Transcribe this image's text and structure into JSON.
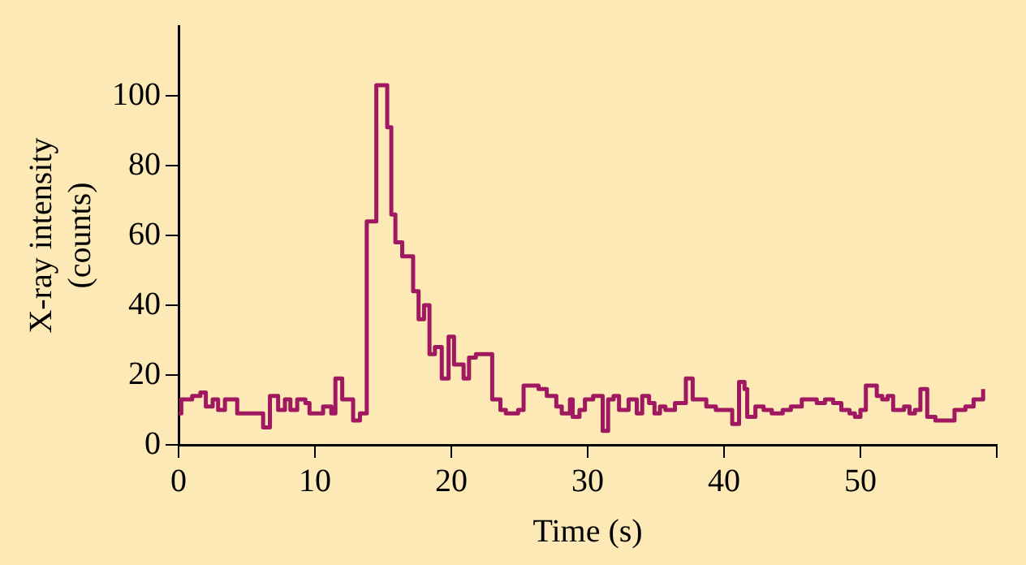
{
  "chart_data": {
    "type": "step",
    "xlabel": "Time (s)",
    "ylabel": "X-ray intensity\n(counts)",
    "x": [
      0,
      0.2,
      1.0,
      1.6,
      2.0,
      2.5,
      2.9,
      3.4,
      4.3,
      6.2,
      6.7,
      7.3,
      7.8,
      8.2,
      8.7,
      9.3,
      9.6,
      10.6,
      11.2,
      11.5,
      12.0,
      12.8,
      13.3,
      13.8,
      14.5,
      15.3,
      15.6,
      15.9,
      16.4,
      17.2,
      17.6,
      18.0,
      18.4,
      18.8,
      19.3,
      19.8,
      20.2,
      20.9,
      21.3,
      21.8,
      23.0,
      23.6,
      24.0,
      24.9,
      25.3,
      26.4,
      27.0,
      27.7,
      28.1,
      28.7,
      28.9,
      29.4,
      29.8,
      30.4,
      31.1,
      31.5,
      31.9,
      32.3,
      33.0,
      33.6,
      34.0,
      34.5,
      34.9,
      35.3,
      35.7,
      36.4,
      37.2,
      37.7,
      38.1,
      38.7,
      39.4,
      40.0,
      40.6,
      41.1,
      41.5,
      41.7,
      42.3,
      42.9,
      43.5,
      44.3,
      44.9,
      45.7,
      46.2,
      46.8,
      47.4,
      48.0,
      48.6,
      49.2,
      49.6,
      50.0,
      50.4,
      51.2,
      51.6,
      52.0,
      52.4,
      52.8,
      53.2,
      53.6,
      54.0,
      54.4,
      54.9,
      55.5,
      56.9,
      57.7,
      58.3,
      59.0
    ],
    "series": [
      {
        "color": "#a01860",
        "values": [
          9,
          13,
          14,
          15,
          11,
          13,
          10,
          13,
          9,
          5,
          14,
          10,
          13,
          10,
          13,
          12,
          9,
          11,
          9,
          19,
          13,
          7,
          9,
          64,
          103,
          91,
          66,
          58,
          54,
          44,
          36,
          40,
          26,
          28,
          19,
          31,
          23,
          19,
          25,
          26,
          13,
          10,
          9,
          10,
          17,
          16,
          14,
          11,
          9,
          13,
          8,
          10,
          13,
          14,
          4,
          13,
          14,
          10,
          13,
          9,
          14,
          12,
          9,
          11,
          10,
          12,
          19,
          13,
          13,
          11,
          10,
          10,
          6,
          18,
          16,
          8,
          11,
          10,
          9,
          10,
          11,
          13,
          13,
          12,
          13,
          12,
          10,
          9,
          8,
          10,
          17,
          14,
          13,
          14,
          10,
          10,
          11,
          9,
          10,
          16,
          8,
          7,
          10,
          11,
          13,
          16
        ]
      }
    ],
    "xlim": [
      0,
      60
    ],
    "xticks": [
      0,
      10,
      20,
      30,
      40,
      50,
      {
        "value": 60,
        "label": null
      }
    ],
    "ylim": [
      0,
      120
    ],
    "yticks": [
      0,
      20,
      40,
      60,
      80,
      100
    ],
    "grid": false,
    "legend": false
  }
}
